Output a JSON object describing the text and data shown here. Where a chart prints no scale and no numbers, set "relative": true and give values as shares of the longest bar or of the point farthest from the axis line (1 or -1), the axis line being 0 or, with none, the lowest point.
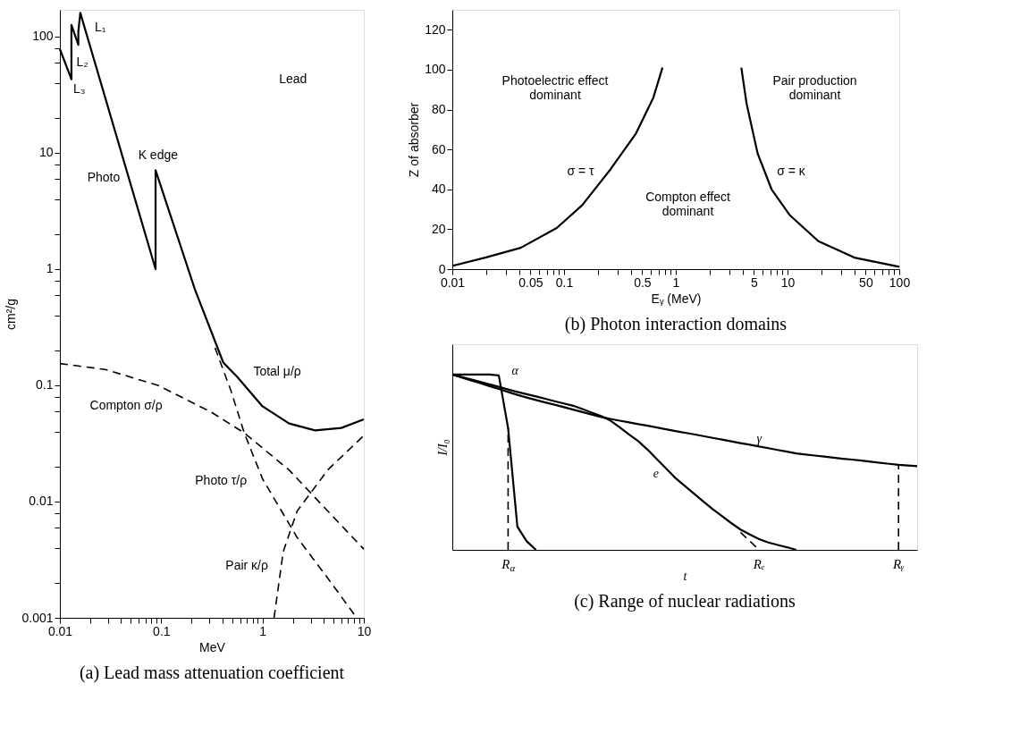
{
  "chart_data": [
    {
      "type": "line",
      "title": "(a) Lead mass attenuation coefficient",
      "xlabel": "MeV",
      "ylabel": "cm²/g",
      "log": "xy",
      "grid": false,
      "xlim": [
        0.01,
        10
      ],
      "ylim": [
        0.001,
        170
      ],
      "xticks": [
        0.01,
        {
          "value": 0.02,
          "label": null
        },
        {
          "value": 0.03,
          "label": null
        },
        {
          "value": 0.04,
          "label": null
        },
        {
          "value": 0.05,
          "label": null
        },
        {
          "value": 0.06,
          "label": null
        },
        {
          "value": 0.07,
          "label": null
        },
        {
          "value": 0.08,
          "label": null
        },
        {
          "value": 0.09,
          "label": null
        },
        0.1,
        {
          "value": 0.2,
          "label": null
        },
        {
          "value": 0.3,
          "label": null
        },
        {
          "value": 0.4,
          "label": null
        },
        {
          "value": 0.5,
          "label": null
        },
        {
          "value": 0.6,
          "label": null
        },
        {
          "value": 0.7,
          "label": null
        },
        {
          "value": 0.8,
          "label": null
        },
        {
          "value": 0.9,
          "label": null
        },
        1,
        {
          "value": 2,
          "label": null
        },
        {
          "value": 3,
          "label": null
        },
        {
          "value": 4,
          "label": null
        },
        {
          "value": 5,
          "label": null
        },
        {
          "value": 6,
          "label": null
        },
        {
          "value": 7,
          "label": null
        },
        {
          "value": 8,
          "label": null
        },
        {
          "value": 9,
          "label": null
        },
        10
      ],
      "yticks": [
        0.001,
        {
          "value": 0.002,
          "label": null
        },
        {
          "value": 0.004,
          "label": null
        },
        {
          "value": 0.006,
          "label": null
        },
        {
          "value": 0.008,
          "label": null
        },
        0.01,
        {
          "value": 0.02,
          "label": null
        },
        {
          "value": 0.04,
          "label": null
        },
        {
          "value": 0.06,
          "label": null
        },
        {
          "value": 0.08,
          "label": null
        },
        0.1,
        {
          "value": 0.2,
          "label": null
        },
        {
          "value": 0.4,
          "label": null
        },
        {
          "value": 0.6,
          "label": null
        },
        {
          "value": 0.8,
          "label": null
        },
        1,
        {
          "value": 2,
          "label": null
        },
        {
          "value": 4,
          "label": null
        },
        {
          "value": 6,
          "label": null
        },
        {
          "value": 8,
          "label": null
        },
        10,
        {
          "value": 20,
          "label": null
        },
        {
          "value": 40,
          "label": null
        },
        {
          "value": 60,
          "label": null
        },
        {
          "value": 80,
          "label": null
        },
        100
      ],
      "series": [
        {
          "color": "#000000",
          "line_style": "solid",
          "x": [
            0.01,
            0.013,
            0.013,
            0.0152,
            0.0152,
            0.0159,
            0.088,
            0.088,
            0.215,
            0.41,
            0.56,
            1.0,
            1.83,
            3.3,
            6.0,
            10
          ],
          "values": [
            78,
            43,
            126,
            85,
            110,
            160,
            1.0,
            7.1,
            0.67,
            0.157,
            0.119,
            0.066,
            0.047,
            0.041,
            0.043,
            0.051
          ]
        },
        {
          "color": "#000000",
          "line_style": "dashed",
          "x": [
            0.01,
            0.028,
            0.093,
            0.31,
            0.66,
            1.83,
            4.4,
            10
          ],
          "values": [
            0.154,
            0.137,
            0.1,
            0.059,
            0.039,
            0.0187,
            0.0083,
            0.0039
          ]
        },
        {
          "color": "#000000",
          "line_style": "dashed",
          "x": [
            0.34,
            0.49,
            0.66,
            1.0,
            2.2,
            4.4,
            8.5
          ],
          "values": [
            0.21,
            0.089,
            0.039,
            0.0157,
            0.0049,
            0.0022,
            0.001
          ]
        },
        {
          "color": "#000000",
          "line_style": "dashed",
          "x": [
            1.3,
            1.6,
            2.2,
            4.4,
            10
          ],
          "values": [
            0.001,
            0.0037,
            0.0083,
            0.0187,
            0.037
          ]
        }
      ],
      "annotations": [
        "L₁",
        "L₂",
        "L₃",
        "Lead",
        "K edge",
        "Photo",
        "Total μ/ρ",
        "Compton σ/ρ",
        "Photo τ/ρ",
        "Pair κ/ρ"
      ]
    },
    {
      "type": "line",
      "title": "(b) Photon interaction domains",
      "xlabel": "Eᵧ (MeV)",
      "ylabel": "Z of absorber",
      "log": "x",
      "grid": false,
      "xlim": [
        0.01,
        100
      ],
      "ylim": [
        0,
        130
      ],
      "xticks": [
        0.01,
        {
          "value": 0.02,
          "label": null
        },
        {
          "value": 0.03,
          "label": null
        },
        {
          "value": 0.04,
          "label": null
        },
        0.05,
        {
          "value": 0.06,
          "label": null
        },
        {
          "value": 0.07,
          "label": null
        },
        {
          "value": 0.08,
          "label": null
        },
        {
          "value": 0.09,
          "label": null
        },
        0.1,
        {
          "value": 0.2,
          "label": null
        },
        {
          "value": 0.3,
          "label": null
        },
        {
          "value": 0.4,
          "label": null
        },
        0.5,
        {
          "value": 0.6,
          "label": null
        },
        {
          "value": 0.7,
          "label": null
        },
        {
          "value": 0.8,
          "label": null
        },
        {
          "value": 0.9,
          "label": null
        },
        1,
        {
          "value": 2,
          "label": null
        },
        {
          "value": 3,
          "label": null
        },
        {
          "value": 4,
          "label": null
        },
        5,
        {
          "value": 6,
          "label": null
        },
        {
          "value": 7,
          "label": null
        },
        {
          "value": 8,
          "label": null
        },
        {
          "value": 9,
          "label": null
        },
        10,
        {
          "value": 20,
          "label": null
        },
        {
          "value": 30,
          "label": null
        },
        {
          "value": 40,
          "label": null
        },
        50,
        {
          "value": 60,
          "label": null
        },
        {
          "value": 70,
          "label": null
        },
        {
          "value": 80,
          "label": null
        },
        {
          "value": 90,
          "label": null
        },
        100
      ],
      "yticks": [
        0,
        20,
        40,
        60,
        80,
        100,
        120
      ],
      "series": [
        {
          "color": "#000000",
          "line_style": "solid",
          "x": [
            0.01,
            0.0197,
            0.041,
            0.086,
            0.145,
            0.26,
            0.44,
            0.63,
            0.76
          ],
          "values": [
            1.6,
            5.8,
            10.7,
            20.6,
            32,
            50,
            68,
            86,
            101
          ]
        },
        {
          "color": "#000000",
          "line_style": "solid",
          "x": [
            3.86,
            4.3,
            5.4,
            7.2,
            10.5,
            18.9,
            39.6,
            100
          ],
          "values": [
            101,
            83,
            58,
            40,
            27,
            14,
            5.8,
            1.2
          ]
        }
      ],
      "annotations": [
        "Photoelectric effect\ndominant",
        "Pair production\ndominant",
        "σ = τ",
        "σ = κ",
        "Compton effect\ndominant"
      ]
    },
    {
      "type": "line",
      "title": "(c) Range of nuclear radiations",
      "xlabel": "t",
      "ylabel": "I/I₀",
      "relative": true,
      "grid": false,
      "tick_labels": "x",
      "categories": [
        null,
        null,
        null,
        null,
        null,
        null,
        "R$_{α}$",
        null,
        null,
        null,
        null,
        null,
        null,
        null,
        null,
        null,
        null,
        null,
        null,
        null,
        null,
        null,
        null,
        null,
        null,
        null,
        null,
        null,
        null,
        null,
        null,
        null,
        null,
        "Rₑ",
        null,
        null,
        null,
        null,
        null,
        null,
        null,
        null,
        null,
        null,
        null,
        null,
        null,
        null,
        "Rᵧ",
        null,
        null
      ],
      "series": [
        {
          "color": "#000000",
          "line_style": "solid",
          "values": [
            1,
            1,
            1,
            1,
            1,
            0.995,
            0.695,
            0.132,
            0.049,
            0,
            null,
            null,
            null,
            null,
            null,
            null,
            null,
            null,
            null,
            null,
            null,
            null,
            null,
            null,
            null,
            null,
            null,
            null,
            null,
            null,
            null,
            null,
            null,
            null,
            null,
            null,
            null,
            null,
            null,
            null,
            null,
            null,
            null,
            null,
            null,
            null,
            null,
            null,
            null,
            null,
            null
          ]
        },
        {
          "color": "#000000",
          "line_style": "solid",
          "values": [
            1,
            0.986,
            0.972,
            0.958,
            0.944,
            0.93,
            0.915,
            0.901,
            0.888,
            0.875,
            0.862,
            0.848,
            0.835,
            0.822,
            0.803,
            0.783,
            0.764,
            0.738,
            0.699,
            0.659,
            0.62,
            0.572,
            0.518,
            0.464,
            0.41,
            0.365,
            0.321,
            0.276,
            0.233,
            0.193,
            0.153,
            0.116,
            0.088,
            0.061,
            0.042,
            0.028,
            0.015,
            0,
            null,
            null,
            null,
            null,
            null,
            null,
            null,
            null,
            null,
            null,
            null,
            null,
            null
          ]
        },
        {
          "color": "#000000",
          "line_style": "solid",
          "values": [
            1,
            0.983,
            0.967,
            0.951,
            0.934,
            0.918,
            0.901,
            0.884,
            0.869,
            0.855,
            0.841,
            0.828,
            0.814,
            0.8,
            0.786,
            0.772,
            0.758,
            0.747,
            0.737,
            0.727,
            0.717,
            0.708,
            0.698,
            0.688,
            0.678,
            0.668,
            0.659,
            0.649,
            0.639,
            0.629,
            0.619,
            0.609,
            0.6,
            0.59,
            0.58,
            0.57,
            0.56,
            0.55,
            0.544,
            0.538,
            0.532,
            0.526,
            0.52,
            0.515,
            0.509,
            0.503,
            0.497,
            0.491,
            0.485,
            0.481,
            0.477
          ]
        },
        {
          "color": "#000000",
          "line_style": "dashed",
          "values": [
            null,
            null,
            null,
            null,
            null,
            null,
            null,
            null,
            null,
            null,
            null,
            null,
            null,
            null,
            null,
            null,
            null,
            null,
            null,
            null,
            null,
            null,
            null,
            null,
            null,
            null,
            null,
            null,
            null,
            null,
            null,
            0.1,
            0.05,
            0,
            null,
            null,
            null,
            null,
            null,
            null,
            null,
            null,
            null,
            null,
            null,
            null,
            null,
            null,
            null,
            null,
            null
          ]
        }
      ],
      "ref_lines": [
        {
          "axis": "x",
          "value": "R$_{α}$",
          "line_style": "dashed",
          "color": "#000000"
        },
        {
          "axis": "x",
          "value": "Rᵧ",
          "line_style": "dashed",
          "color": "#000000"
        }
      ],
      "annotations": [
        "α",
        "e",
        "γ"
      ]
    }
  ]
}
